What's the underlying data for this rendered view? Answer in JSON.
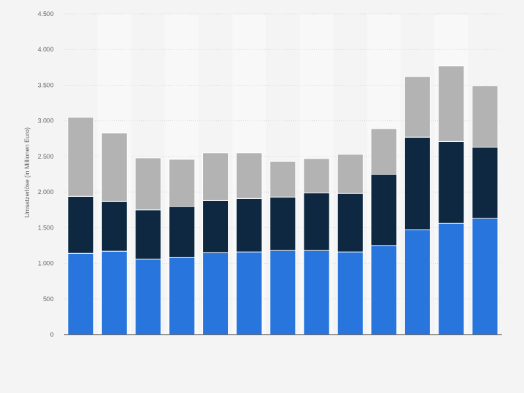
{
  "chart_data": {
    "type": "bar",
    "stacked": true,
    "title": "",
    "xlabel": "",
    "ylabel": "Umsatzerlöse (in Millionen Euro)",
    "ylim": [
      0,
      4500
    ],
    "yticks": [
      0,
      500,
      1000,
      1500,
      2000,
      2500,
      3000,
      3500,
      4000,
      4500
    ],
    "ytick_labels": [
      "0",
      "500",
      "1.000",
      "1.500",
      "2.000",
      "2.500",
      "3.000",
      "3.500",
      "4.000",
      "4.500"
    ],
    "categories": [
      "",
      "",
      "",
      "",
      "",
      "",
      "",
      "",
      "",
      "",
      "",
      "",
      ""
    ],
    "grid": true,
    "series": [
      {
        "color": "#2876dd",
        "values": [
          1140,
          1170,
          1060,
          1080,
          1150,
          1160,
          1180,
          1180,
          1160,
          1250,
          1470,
          1560,
          1630
        ]
      },
      {
        "color": "#0e2841",
        "values": [
          800,
          700,
          690,
          720,
          730,
          750,
          750,
          810,
          820,
          1000,
          1300,
          1150,
          1000
        ]
      },
      {
        "color": "#b3b3b3",
        "values": [
          1110,
          960,
          730,
          660,
          670,
          640,
          500,
          480,
          550,
          640,
          850,
          1060,
          860
        ]
      }
    ]
  }
}
